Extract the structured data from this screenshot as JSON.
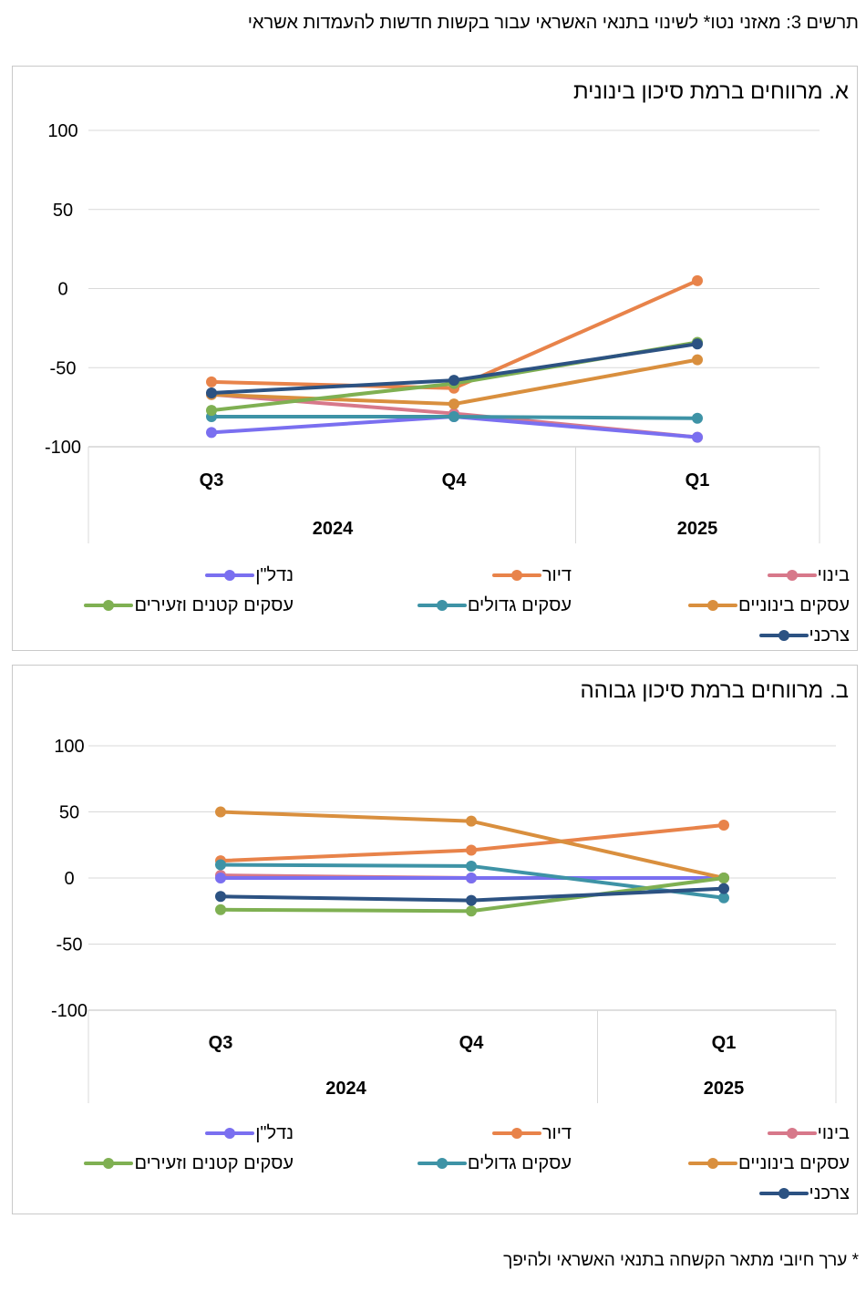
{
  "figure_title": "תרשים 3: מאזני נטו* לשינוי בתנאי האשראי עבור בקשות חדשות להעמדות אשראי",
  "footnote": "* ערך חיובי מתאר הקשחה בתנאי האשראי ולהיפך",
  "series_colors": {
    "בינוי": "#d7788a",
    "דיור": "#e8834a",
    "נדל\"ן": "#7a6ff0",
    "עסקים בינוניים": "#d98f3e",
    "עסקים גדולים": "#3e93a6",
    "עסקים קטנים וזעירים": "#7fb052",
    "צרכני": "#2c5282"
  },
  "chart_data": [
    {
      "type": "line",
      "title": "א. מרווחים ברמת סיכון בינונית",
      "categories": [
        "Q3",
        "Q4",
        "Q1"
      ],
      "year_groups": [
        {
          "label": "2024",
          "categories": [
            "Q3",
            "Q4"
          ]
        },
        {
          "label": "2025",
          "categories": [
            "Q1"
          ]
        }
      ],
      "yticks": [
        "100",
        "50",
        "0",
        "-50",
        "-100"
      ],
      "ylim": [
        -100,
        100
      ],
      "legend_position": "bottom",
      "series": [
        {
          "name": "בינוי",
          "values": [
            -67,
            -79,
            -94
          ]
        },
        {
          "name": "דיור",
          "values": [
            -59,
            -63,
            5
          ]
        },
        {
          "name": "נדל\"ן",
          "values": [
            -91,
            -81,
            -94
          ]
        },
        {
          "name": "עסקים בינוניים",
          "values": [
            -67,
            -73,
            -45
          ]
        },
        {
          "name": "עסקים גדולים",
          "values": [
            -81,
            -81,
            -82
          ]
        },
        {
          "name": "עסקים קטנים וזעירים",
          "values": [
            -77,
            -60,
            -34
          ]
        },
        {
          "name": "צרכני",
          "values": [
            -66,
            -58,
            -35
          ]
        }
      ]
    },
    {
      "type": "line",
      "title": "ב. מרווחים ברמת סיכון גבוהה",
      "categories": [
        "Q3",
        "Q4",
        "Q1"
      ],
      "year_groups": [
        {
          "label": "2024",
          "categories": [
            "Q3",
            "Q4"
          ]
        },
        {
          "label": "2025",
          "categories": [
            "Q1"
          ]
        }
      ],
      "yticks": [
        "100",
        "50",
        "0",
        "-50",
        "-100"
      ],
      "ylim": [
        -100,
        100
      ],
      "legend_position": "bottom",
      "series": [
        {
          "name": "בינוי",
          "values": [
            2,
            0,
            0
          ]
        },
        {
          "name": "דיור",
          "values": [
            13,
            21,
            40
          ]
        },
        {
          "name": "נדל\"ן",
          "values": [
            0,
            0,
            0
          ]
        },
        {
          "name": "עסקים בינוניים",
          "values": [
            50,
            43,
            0
          ]
        },
        {
          "name": "עסקים גדולים",
          "values": [
            10,
            9,
            -15
          ]
        },
        {
          "name": "עסקים קטנים וזעירים",
          "values": [
            -24,
            -25,
            0
          ]
        },
        {
          "name": "צרכני",
          "values": [
            -14,
            -17,
            -8
          ]
        }
      ]
    }
  ]
}
